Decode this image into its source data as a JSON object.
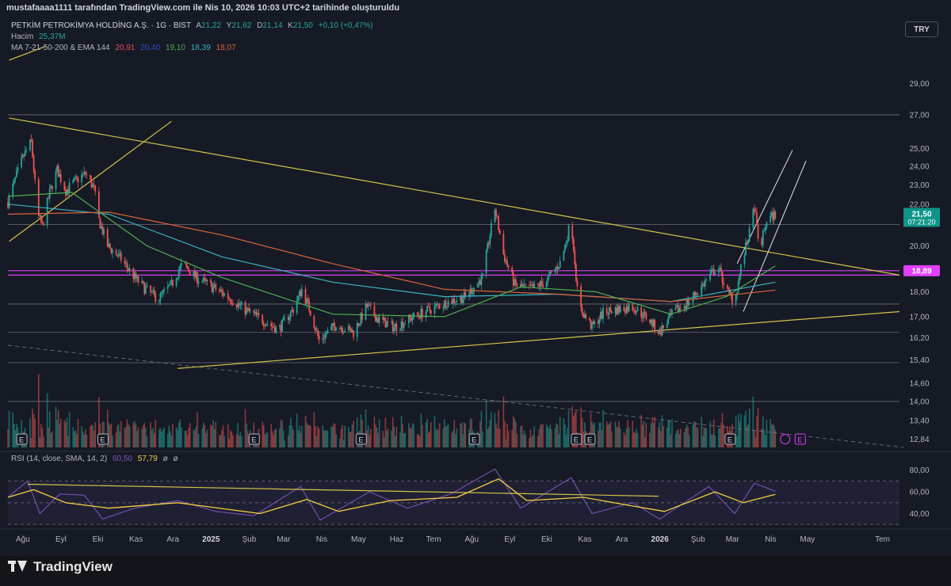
{
  "header": {
    "attribution": "mustafaaaa1111 tarafından TradingView.com ile Nis 10, 2026 10:03 UTC+2 tarihinde oluşturuldu",
    "symbol": "PETKİM PETROKİMYA HOLDİNG A.Ş. · 1G · BIST",
    "ohlc": {
      "a_label": "A",
      "a": "21,22",
      "y_label": "Y",
      "y": "21,62",
      "d_label": "D",
      "d": "21,14",
      "k_label": "K",
      "k": "21,50",
      "change": "+0,10 (+0,47%)"
    },
    "volume_label": "Hacim",
    "volume_value": "25,37M",
    "ma_label": "MA 7-21-50-200 & EMA 144",
    "ma_values": [
      "20,91",
      "20,40",
      "19,10",
      "18,39",
      "18,07"
    ],
    "currency": "TRY",
    "rsi_label": "RSI (14, close, SMA, 14, 2)",
    "rsi_values": [
      "60,50",
      "57,79",
      "ø",
      "ø"
    ]
  },
  "colors": {
    "background": "#161a25",
    "up": "#26a69a",
    "down": "#ef5350",
    "trendline": "#d4c348",
    "hline": "#b2b5be",
    "magenta": "#e040fb",
    "ma7": "#e84a5f",
    "ma21": "#2f4bc8",
    "ma50": "#4caf50",
    "ma200": "#3bb3c3",
    "ema144": "#d9643a",
    "rsi": "#7e57c2",
    "rsi_ma": "#f4d03f",
    "price_label": "#0e9488",
    "level_label": "#e040fb"
  },
  "footer": {
    "brand": "TradingView"
  },
  "chart_data": [
    {
      "type": "candlestick",
      "title": "PETKİM PETROKİMYA HOLDİNG A.Ş. · 1G · BIST",
      "y_axis_ticks": [
        "29,00",
        "27,00",
        "25,00",
        "24,00",
        "23,00",
        "22,00",
        "20,00",
        "18,00",
        "17,00",
        "16,20",
        "15,40",
        "14,60",
        "14,00",
        "13,40",
        "12,84"
      ],
      "y_scale": "log",
      "y_range": [
        12.6,
        31.5
      ],
      "x_axis_ticks": [
        "Ağu",
        "Eyl",
        "Eki",
        "Kas",
        "Ara",
        "2025",
        "Şub",
        "Mar",
        "Nis",
        "May",
        "Haz",
        "Tem",
        "Ağu",
        "Eyl",
        "Eki",
        "Kas",
        "Ara",
        "2026",
        "Şub",
        "Mar",
        "Nis",
        "May",
        "Tem"
      ],
      "last_price": "21,50",
      "countdown": "07:21:20",
      "level_label": "18,89",
      "horizontal_levels": [
        27.0,
        21.0,
        18.89,
        18.7,
        17.5,
        16.4,
        15.3,
        14.0
      ],
      "price_path": [
        [
          "2024-07-25",
          22.1
        ],
        [
          "2024-08-01",
          23.5
        ],
        [
          "2024-08-07",
          24.6
        ],
        [
          "2024-08-13",
          25.4
        ],
        [
          "2024-08-18",
          21.5
        ],
        [
          "2024-08-22",
          20.9
        ],
        [
          "2024-08-28",
          22.6
        ],
        [
          "2024-09-03",
          23.8
        ],
        [
          "2024-09-10",
          22.7
        ],
        [
          "2024-09-18",
          23.2
        ],
        [
          "2024-09-26",
          23.6
        ],
        [
          "2024-10-03",
          22.8
        ],
        [
          "2024-10-07",
          21.2
        ],
        [
          "2024-10-14",
          20.0
        ],
        [
          "2024-10-25",
          19.4
        ],
        [
          "2024-11-05",
          18.6
        ],
        [
          "2024-11-14",
          18.1
        ],
        [
          "2024-11-24",
          17.7
        ],
        [
          "2024-12-05",
          18.3
        ],
        [
          "2024-12-14",
          19.2
        ],
        [
          "2024-12-25",
          18.6
        ],
        [
          "2025-01-07",
          18.2
        ],
        [
          "2025-01-20",
          17.8
        ],
        [
          "2025-02-02",
          17.3
        ],
        [
          "2025-02-16",
          16.9
        ],
        [
          "2025-03-02",
          16.5
        ],
        [
          "2025-03-14",
          17.3
        ],
        [
          "2025-03-21",
          18.1
        ],
        [
          "2025-03-28",
          17.2
        ],
        [
          "2025-04-04",
          16.1
        ],
        [
          "2025-04-18",
          16.7
        ],
        [
          "2025-05-02",
          16.4
        ],
        [
          "2025-05-13",
          17.4
        ],
        [
          "2025-05-22",
          16.9
        ],
        [
          "2025-06-04",
          16.6
        ],
        [
          "2025-06-20",
          17.0
        ],
        [
          "2025-07-04",
          17.3
        ],
        [
          "2025-07-18",
          17.6
        ],
        [
          "2025-08-01",
          17.8
        ],
        [
          "2025-08-15",
          18.6
        ],
        [
          "2025-08-25",
          21.8
        ],
        [
          "2025-09-01",
          19.6
        ],
        [
          "2025-09-10",
          18.3
        ],
        [
          "2025-09-22",
          18.1
        ],
        [
          "2025-10-05",
          18.4
        ],
        [
          "2025-10-18",
          19.3
        ],
        [
          "2025-10-26",
          21.2
        ],
        [
          "2025-11-01",
          17.4
        ],
        [
          "2025-11-12",
          16.6
        ],
        [
          "2025-11-22",
          17.2
        ],
        [
          "2025-12-05",
          17.3
        ],
        [
          "2025-12-15",
          17.4
        ],
        [
          "2025-12-28",
          16.9
        ],
        [
          "2026-01-06",
          16.4
        ],
        [
          "2026-01-18",
          17.2
        ],
        [
          "2026-01-30",
          17.6
        ],
        [
          "2026-02-12",
          18.4
        ],
        [
          "2026-02-22",
          19.1
        ],
        [
          "2026-03-02",
          18.0
        ],
        [
          "2026-03-08",
          17.6
        ],
        [
          "2026-03-13",
          19.0
        ],
        [
          "2026-03-20",
          20.6
        ],
        [
          "2026-03-24",
          21.9
        ],
        [
          "2026-03-28",
          19.7
        ],
        [
          "2026-04-03",
          21.2
        ],
        [
          "2026-04-10",
          21.5
        ]
      ],
      "ma": [
        {
          "label": "MA 200",
          "values": [
            [
              "2024-07-25",
              22.0
            ],
            [
              "2024-10-15",
              21.5
            ],
            [
              "2025-01-15",
              19.5
            ],
            [
              "2025-04-15",
              18.4
            ],
            [
              "2025-07-15",
              17.8
            ],
            [
              "2025-10-15",
              17.9
            ],
            [
              "2026-01-15",
              17.6
            ],
            [
              "2026-04-10",
              18.4
            ]
          ]
        },
        {
          "label": "EMA 144",
          "values": [
            [
              "2024-07-25",
              21.5
            ],
            [
              "2024-10-15",
              21.6
            ],
            [
              "2025-01-15",
              20.5
            ],
            [
              "2025-04-15",
              19.2
            ],
            [
              "2025-07-15",
              18.1
            ],
            [
              "2025-10-15",
              17.9
            ],
            [
              "2026-01-15",
              17.6
            ],
            [
              "2026-04-10",
              18.07
            ]
          ]
        },
        {
          "label": "MA 50",
          "values": [
            [
              "2024-07-25",
              22.4
            ],
            [
              "2024-09-15",
              22.6
            ],
            [
              "2024-11-15",
              20.0
            ],
            [
              "2025-01-15",
              18.6
            ],
            [
              "2025-04-15",
              17.1
            ],
            [
              "2025-07-15",
              17.0
            ],
            [
              "2025-09-15",
              18.2
            ],
            [
              "2025-11-15",
              18.0
            ],
            [
              "2026-01-15",
              17.1
            ],
            [
              "2026-03-01",
              17.8
            ],
            [
              "2026-04-10",
              19.1
            ]
          ]
        }
      ]
    },
    {
      "type": "bar",
      "title": "Hacim",
      "series": [
        {
          "name": "Hacim",
          "unit": "M",
          "last": 25.37
        }
      ],
      "earnings_markers": [
        "2024-08-05",
        "2024-10-10",
        "2025-02-10",
        "2025-05-08",
        "2025-08-08",
        "2025-10-30",
        "2025-11-10",
        "2026-03-04",
        "2026-04-30"
      ]
    },
    {
      "type": "line",
      "title": "RSI (14, close, SMA, 14, 2)",
      "y_axis_ticks": [
        "80,00",
        "60,00",
        "40,00"
      ],
      "y_range": [
        28,
        90
      ],
      "bands": [
        70,
        50,
        30
      ],
      "series": [
        {
          "name": "RSI",
          "values": [
            [
              "2024-07-25",
              55
            ],
            [
              "2024-08-10",
              70
            ],
            [
              "2024-08-20",
              40
            ],
            [
              "2024-09-05",
              58
            ],
            [
              "2024-09-25",
              57
            ],
            [
              "2024-10-10",
              35
            ],
            [
              "2024-11-05",
              45
            ],
            [
              "2024-12-10",
              52
            ],
            [
              "2025-01-10",
              42
            ],
            [
              "2025-02-10",
              38
            ],
            [
              "2025-03-20",
              65
            ],
            [
              "2025-04-05",
              34
            ],
            [
              "2025-05-15",
              60
            ],
            [
              "2025-06-15",
              45
            ],
            [
              "2025-07-20",
              58
            ],
            [
              "2025-08-25",
              81
            ],
            [
              "2025-09-15",
              45
            ],
            [
              "2025-10-26",
              73
            ],
            [
              "2025-11-12",
              40
            ],
            [
              "2025-12-15",
              50
            ],
            [
              "2026-01-06",
              35
            ],
            [
              "2026-02-15",
              65
            ],
            [
              "2026-03-08",
              40
            ],
            [
              "2026-03-24",
              68
            ],
            [
              "2026-04-10",
              60.5
            ]
          ]
        },
        {
          "name": "RSI-based MA",
          "values": [
            [
              "2024-07-25",
              55
            ],
            [
              "2024-08-15",
              62
            ],
            [
              "2024-09-10",
              50
            ],
            [
              "2024-10-15",
              45
            ],
            [
              "2024-12-10",
              50
            ],
            [
              "2025-02-15",
              40
            ],
            [
              "2025-03-25",
              53
            ],
            [
              "2025-04-20",
              42
            ],
            [
              "2025-06-01",
              52
            ],
            [
              "2025-07-25",
              55
            ],
            [
              "2025-08-28",
              72
            ],
            [
              "2025-09-20",
              52
            ],
            [
              "2025-11-05",
              55
            ],
            [
              "2025-12-15",
              47
            ],
            [
              "2026-01-10",
              42
            ],
            [
              "2026-02-20",
              60
            ],
            [
              "2026-03-15",
              50
            ],
            [
              "2026-04-10",
              57.79
            ]
          ]
        }
      ],
      "trendline": [
        [
          "2024-08-10",
          67
        ],
        [
          "2026-01-05",
          56
        ]
      ]
    }
  ]
}
